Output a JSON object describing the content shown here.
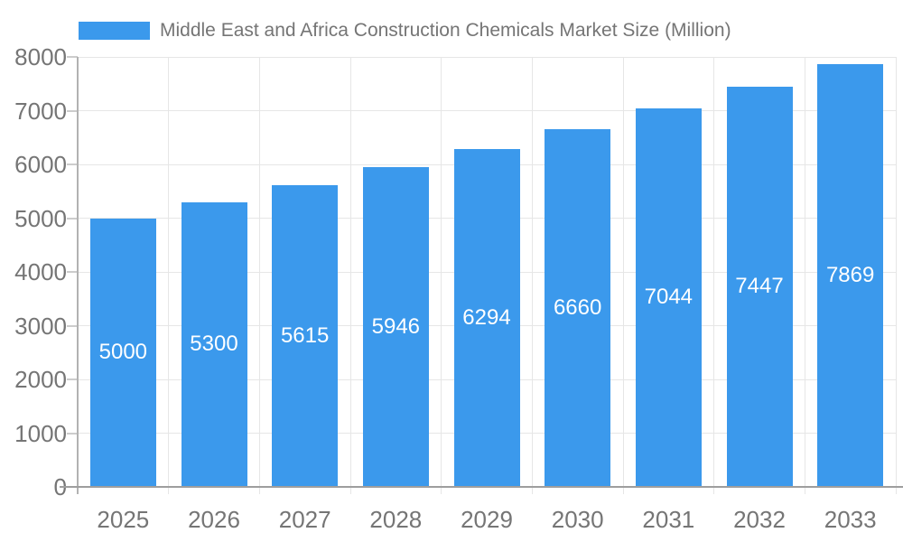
{
  "chart_data": {
    "type": "bar",
    "title": "Middle East and Africa Construction Chemicals Market Size (Million)",
    "categories": [
      "2025",
      "2026",
      "2027",
      "2028",
      "2029",
      "2030",
      "2031",
      "2032",
      "2033"
    ],
    "values": [
      5000,
      5300,
      5615,
      5946,
      6294,
      6660,
      7044,
      7447,
      7869
    ],
    "bar_labels": [
      "5000",
      "5300",
      "5615",
      "5946",
      "6294",
      "6660",
      "7044",
      "7447",
      "7869"
    ],
    "xlabel": "",
    "ylabel": "",
    "ylim": [
      0,
      8000
    ],
    "ytick_step": 1000,
    "ytick_labels": [
      "0",
      "1000",
      "2000",
      "3000",
      "4000",
      "5000",
      "6000",
      "7000",
      "8000"
    ],
    "grid": true,
    "legend_position": "top",
    "colors": {
      "bar": "#3B99EC",
      "axis_text": "#757575",
      "title_text": "#757575",
      "value_label": "#FFFFFF",
      "gridline": "#E6E6E6",
      "baseline": "#9E9E9E",
      "axis_line": "#B2B2B2",
      "tick": "#CCCCCC",
      "background": "#FFFFFF"
    }
  }
}
